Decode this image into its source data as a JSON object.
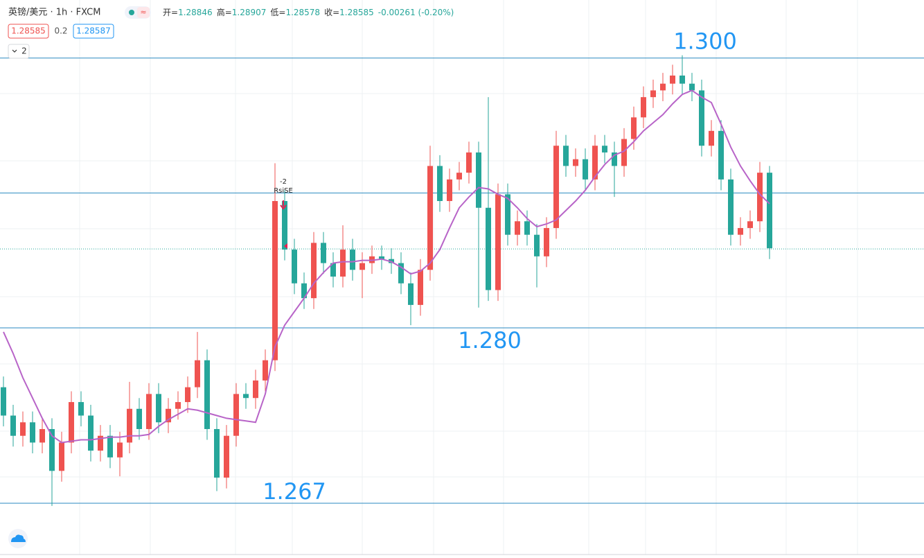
{
  "header": {
    "symbol": "英镑/美元 · 1h · FXCM",
    "legend": [
      {
        "name": "开=",
        "value": "1.28846"
      },
      {
        "name": "高=",
        "value": "1.28907"
      },
      {
        "name": "低=",
        "value": "1.28578"
      },
      {
        "name": "收=",
        "value": "1.28585"
      },
      {
        "name": "",
        "value": "-0.00261 (-0.20%)"
      }
    ],
    "spread": "0.2",
    "ask": "1.28587",
    "indicator_count": "2"
  },
  "chart_data": {
    "type": "candlestick",
    "ylim": [
      1.2632,
      1.3043
    ],
    "up_color": "#ef5350",
    "down_color": "#26a69a",
    "ma_color": "#b864c8",
    "level_color": "#2a8ac0",
    "last_price": {
      "value": 1.28585,
      "label": "1.28585"
    },
    "levels": [
      {
        "value": 1.3,
        "label": "1.300"
      },
      1.29,
      {
        "value": 1.28,
        "label": "1.280"
      },
      {
        "value": 1.267,
        "label": "1.267"
      }
    ],
    "signal": {
      "count": "-2",
      "name": "RsiSE"
    },
    "open": [
      1.2756,
      1.2735,
      1.272,
      1.273,
      1.2715,
      1.2725,
      1.2694,
      1.2715,
      1.2745,
      1.2735,
      1.2709,
      1.272,
      1.2704,
      1.2715,
      1.274,
      1.2725,
      1.2751,
      1.273,
      1.274,
      1.2745,
      1.2756,
      1.2776,
      1.2725,
      1.2689,
      1.272,
      1.2751,
      1.2748,
      1.2761,
      1.2776,
      1.2894,
      1.2858,
      1.2833,
      1.2822,
      1.2863,
      1.2848,
      1.2838,
      1.2858,
      1.2843,
      1.2848,
      1.2853,
      1.2851,
      1.2848,
      1.2833,
      1.2817,
      1.2843,
      1.292,
      1.2894,
      1.291,
      1.2915,
      1.293,
      1.2889,
      1.2828,
      1.2899,
      1.2869,
      1.2879,
      1.2869,
      1.2853,
      1.2874,
      1.2935,
      1.292,
      1.2925,
      1.291,
      1.2935,
      1.293,
      1.292,
      1.294,
      1.2956,
      1.2971,
      1.2976,
      1.2981,
      1.2987,
      1.2981,
      1.2976,
      1.2935,
      1.2946,
      1.291,
      1.2869,
      1.2874,
      1.2879,
      1.2915
    ],
    "high": [
      1.2764,
      1.2743,
      1.2738,
      1.2738,
      1.2733,
      1.2733,
      1.2723,
      1.2753,
      1.2753,
      1.2743,
      1.2728,
      1.2728,
      1.2723,
      1.276,
      1.2748,
      1.2759,
      1.2759,
      1.2748,
      1.2753,
      1.2764,
      1.2797,
      1.2784,
      1.2733,
      1.2728,
      1.2759,
      1.2759,
      1.2769,
      1.2784,
      1.2922,
      1.2902,
      1.2866,
      1.2841,
      1.2871,
      1.2871,
      1.2856,
      1.2876,
      1.2866,
      1.2856,
      1.2861,
      1.2861,
      1.2859,
      1.2856,
      1.2841,
      1.2851,
      1.2935,
      1.2928,
      1.2918,
      1.2923,
      1.2938,
      1.2938,
      1.2971,
      1.2907,
      1.2907,
      1.2887,
      1.2887,
      1.2877,
      1.2882,
      1.2946,
      1.2943,
      1.2933,
      1.2933,
      1.2943,
      1.2943,
      1.2938,
      1.2948,
      1.2964,
      1.2979,
      1.2984,
      1.2989,
      1.2995,
      1.3002,
      1.2989,
      1.2984,
      1.2954,
      1.2954,
      1.2918,
      1.2882,
      1.2887,
      1.2923,
      1.292
    ],
    "low": [
      1.2727,
      1.2712,
      1.2712,
      1.2707,
      1.2707,
      1.2668,
      1.2686,
      1.2707,
      1.2727,
      1.2701,
      1.2701,
      1.2696,
      1.269,
      1.2707,
      1.2717,
      1.2717,
      1.2722,
      1.2722,
      1.2732,
      1.2737,
      1.2748,
      1.2717,
      1.2679,
      1.2681,
      1.2712,
      1.274,
      1.274,
      1.2753,
      1.2768,
      1.285,
      1.2825,
      1.2814,
      1.2814,
      1.284,
      1.283,
      1.283,
      1.2835,
      1.2822,
      1.284,
      1.2843,
      1.284,
      1.2825,
      1.2802,
      1.2809,
      1.2835,
      1.2886,
      1.2886,
      1.2902,
      1.2907,
      1.2815,
      1.282,
      1.282,
      1.2861,
      1.2861,
      1.2861,
      1.283,
      1.2845,
      1.2866,
      1.2912,
      1.2912,
      1.2902,
      1.2902,
      1.2922,
      1.2897,
      1.2912,
      1.2932,
      1.2948,
      1.2963,
      1.2968,
      1.2973,
      1.2973,
      1.2968,
      1.2927,
      1.2927,
      1.2902,
      1.2861,
      1.2861,
      1.2866,
      1.2871,
      1.2851
    ],
    "close": [
      1.2735,
      1.272,
      1.273,
      1.2715,
      1.2725,
      1.2694,
      1.2715,
      1.2745,
      1.2735,
      1.2709,
      1.272,
      1.2704,
      1.2715,
      1.274,
      1.2725,
      1.2751,
      1.273,
      1.274,
      1.2745,
      1.2756,
      1.2776,
      1.2725,
      1.2689,
      1.272,
      1.2751,
      1.2748,
      1.2761,
      1.2776,
      1.2894,
      1.2858,
      1.2833,
      1.2822,
      1.2863,
      1.2848,
      1.2838,
      1.2858,
      1.2843,
      1.2848,
      1.2853,
      1.2851,
      1.2848,
      1.2833,
      1.2817,
      1.2843,
      1.292,
      1.2894,
      1.291,
      1.2915,
      1.293,
      1.2889,
      1.2828,
      1.2899,
      1.2869,
      1.2879,
      1.2869,
      1.2853,
      1.2874,
      1.2935,
      1.292,
      1.2925,
      1.291,
      1.2935,
      1.293,
      1.292,
      1.294,
      1.2956,
      1.2971,
      1.2976,
      1.2981,
      1.2987,
      1.2981,
      1.2976,
      1.2935,
      1.2946,
      1.291,
      1.2869,
      1.2874,
      1.2879,
      1.2915,
      1.2859
    ],
    "ma": [
      1.2797,
      1.2781,
      1.2763,
      1.2748,
      1.2733,
      1.272,
      1.2715,
      1.2716,
      1.2717,
      1.2717,
      1.2718,
      1.2719,
      1.2719,
      1.272,
      1.272,
      1.2721,
      1.2727,
      1.2732,
      1.2736,
      1.274,
      1.2739,
      1.2737,
      1.2735,
      1.2733,
      1.2732,
      1.2731,
      1.273,
      1.2751,
      1.2786,
      1.2802,
      1.2812,
      1.2822,
      1.2833,
      1.2841,
      1.2848,
      1.2849,
      1.2849,
      1.285,
      1.285,
      1.2851,
      1.2849,
      1.2845,
      1.284,
      1.2842,
      1.2848,
      1.2858,
      1.2874,
      1.2889,
      1.2897,
      1.2904,
      1.2903,
      1.2899,
      1.2896,
      1.2889,
      1.2881,
      1.2875,
      1.2877,
      1.288,
      1.2887,
      1.2894,
      1.2902,
      1.2912,
      1.2921,
      1.2928,
      1.2931,
      1.2938,
      1.2946,
      1.2952,
      1.2958,
      1.2966,
      1.2973,
      1.2976,
      1.2971,
      1.2967,
      1.2951,
      1.2934,
      1.292,
      1.2909,
      1.2899,
      1.2892
    ]
  }
}
